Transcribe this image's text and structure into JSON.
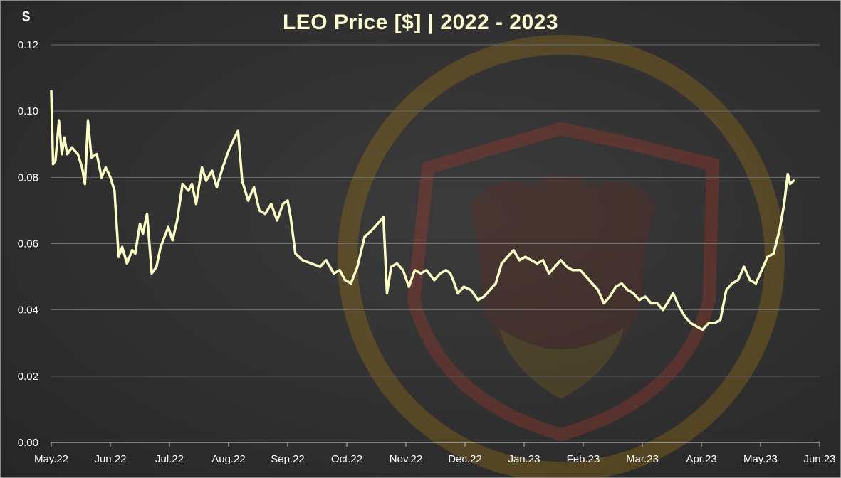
{
  "chart_data": {
    "type": "line",
    "title": "LEO Price [$] | 2022 - 2023",
    "ylabel": "$",
    "xlabel": "",
    "ylim": [
      0,
      0.12
    ],
    "yticks": [
      "0.00",
      "0.02",
      "0.04",
      "0.06",
      "0.08",
      "0.10",
      "0.12"
    ],
    "ytick_values": [
      0,
      0.02,
      0.04,
      0.06,
      0.08,
      0.1,
      0.12
    ],
    "xtick_labels": [
      "May.22",
      "Jun.22",
      "Jul.22",
      "Aug.22",
      "Sep.22",
      "Oct.22",
      "Nov.22",
      "Dec.22",
      "Jan.23",
      "Feb.23",
      "Mar.23",
      "Apr.23",
      "May.23",
      "Jun.23"
    ],
    "xlim": [
      0,
      13
    ],
    "grid": true,
    "line_color": "#ffffc8",
    "series": [
      {
        "values": [
          [
            0.0,
            0.106
          ],
          [
            0.03,
            0.084
          ],
          [
            0.07,
            0.085
          ],
          [
            0.13,
            0.097
          ],
          [
            0.18,
            0.087
          ],
          [
            0.22,
            0.092
          ],
          [
            0.27,
            0.087
          ],
          [
            0.35,
            0.089
          ],
          [
            0.45,
            0.087
          ],
          [
            0.52,
            0.083
          ],
          [
            0.57,
            0.078
          ],
          [
            0.62,
            0.097
          ],
          [
            0.68,
            0.086
          ],
          [
            0.77,
            0.087
          ],
          [
            0.85,
            0.08
          ],
          [
            0.92,
            0.083
          ],
          [
            1.0,
            0.08
          ],
          [
            1.07,
            0.076
          ],
          [
            1.14,
            0.056
          ],
          [
            1.2,
            0.059
          ],
          [
            1.28,
            0.054
          ],
          [
            1.37,
            0.058
          ],
          [
            1.42,
            0.057
          ],
          [
            1.5,
            0.066
          ],
          [
            1.55,
            0.063
          ],
          [
            1.62,
            0.069
          ],
          [
            1.7,
            0.051
          ],
          [
            1.78,
            0.053
          ],
          [
            1.85,
            0.059
          ],
          [
            1.98,
            0.065
          ],
          [
            2.05,
            0.061
          ],
          [
            2.13,
            0.067
          ],
          [
            2.22,
            0.078
          ],
          [
            2.32,
            0.076
          ],
          [
            2.38,
            0.078
          ],
          [
            2.45,
            0.072
          ],
          [
            2.55,
            0.083
          ],
          [
            2.62,
            0.079
          ],
          [
            2.72,
            0.082
          ],
          [
            2.8,
            0.077
          ],
          [
            2.9,
            0.083
          ],
          [
            3.0,
            0.088
          ],
          [
            3.1,
            0.092
          ],
          [
            3.16,
            0.094
          ],
          [
            3.23,
            0.079
          ],
          [
            3.33,
            0.073
          ],
          [
            3.43,
            0.077
          ],
          [
            3.52,
            0.07
          ],
          [
            3.62,
            0.069
          ],
          [
            3.72,
            0.072
          ],
          [
            3.82,
            0.067
          ],
          [
            3.92,
            0.072
          ],
          [
            4.0,
            0.073
          ],
          [
            4.05,
            0.068
          ],
          [
            4.13,
            0.057
          ],
          [
            4.25,
            0.055
          ],
          [
            4.4,
            0.054
          ],
          [
            4.55,
            0.053
          ],
          [
            4.65,
            0.055
          ],
          [
            4.78,
            0.051
          ],
          [
            4.88,
            0.052
          ],
          [
            4.97,
            0.049
          ],
          [
            5.07,
            0.048
          ],
          [
            5.18,
            0.053
          ],
          [
            5.3,
            0.062
          ],
          [
            5.42,
            0.064
          ],
          [
            5.52,
            0.066
          ],
          [
            5.62,
            0.068
          ],
          [
            5.68,
            0.045
          ],
          [
            5.75,
            0.053
          ],
          [
            5.85,
            0.054
          ],
          [
            5.95,
            0.052
          ],
          [
            6.05,
            0.047
          ],
          [
            6.15,
            0.052
          ],
          [
            6.25,
            0.051
          ],
          [
            6.35,
            0.052
          ],
          [
            6.48,
            0.049
          ],
          [
            6.58,
            0.051
          ],
          [
            6.68,
            0.052
          ],
          [
            6.75,
            0.051
          ],
          [
            6.8,
            0.049
          ],
          [
            6.88,
            0.045
          ],
          [
            6.98,
            0.047
          ],
          [
            7.1,
            0.046
          ],
          [
            7.22,
            0.043
          ],
          [
            7.32,
            0.044
          ],
          [
            7.42,
            0.046
          ],
          [
            7.52,
            0.048
          ],
          [
            7.62,
            0.054
          ],
          [
            7.72,
            0.056
          ],
          [
            7.82,
            0.058
          ],
          [
            7.92,
            0.055
          ],
          [
            8.02,
            0.056
          ],
          [
            8.12,
            0.055
          ],
          [
            8.22,
            0.054
          ],
          [
            8.32,
            0.055
          ],
          [
            8.42,
            0.051
          ],
          [
            8.52,
            0.053
          ],
          [
            8.62,
            0.055
          ],
          [
            8.72,
            0.053
          ],
          [
            8.82,
            0.052
          ],
          [
            8.95,
            0.052
          ],
          [
            9.05,
            0.05
          ],
          [
            9.15,
            0.048
          ],
          [
            9.25,
            0.046
          ],
          [
            9.35,
            0.042
          ],
          [
            9.45,
            0.044
          ],
          [
            9.55,
            0.047
          ],
          [
            9.65,
            0.048
          ],
          [
            9.75,
            0.046
          ],
          [
            9.85,
            0.045
          ],
          [
            9.95,
            0.043
          ],
          [
            10.05,
            0.044
          ],
          [
            10.15,
            0.042
          ],
          [
            10.25,
            0.042
          ],
          [
            10.35,
            0.04
          ],
          [
            10.42,
            0.042
          ],
          [
            10.52,
            0.045
          ],
          [
            10.62,
            0.041
          ],
          [
            10.72,
            0.038
          ],
          [
            10.82,
            0.036
          ],
          [
            10.92,
            0.035
          ],
          [
            11.02,
            0.034
          ],
          [
            11.12,
            0.036
          ],
          [
            11.22,
            0.036
          ],
          [
            11.32,
            0.037
          ],
          [
            11.42,
            0.046
          ],
          [
            11.52,
            0.048
          ],
          [
            11.62,
            0.049
          ],
          [
            11.72,
            0.053
          ],
          [
            11.82,
            0.049
          ],
          [
            11.92,
            0.048
          ],
          [
            12.02,
            0.052
          ],
          [
            12.12,
            0.056
          ],
          [
            12.22,
            0.057
          ],
          [
            12.32,
            0.064
          ],
          [
            12.4,
            0.072
          ],
          [
            12.46,
            0.081
          ],
          [
            12.5,
            0.078
          ],
          [
            12.56,
            0.079
          ]
        ]
      }
    ]
  }
}
